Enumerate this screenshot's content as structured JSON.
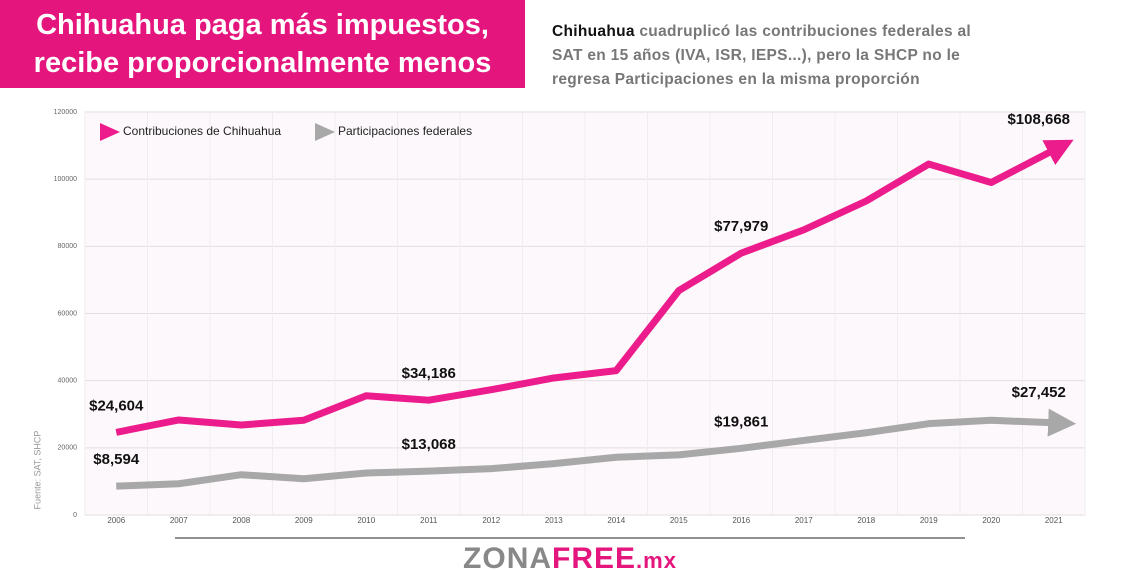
{
  "chart_data": {
    "type": "line",
    "title": "Chihuahua paga más impuestos, recibe proporcionalmente menos",
    "subtitle": {
      "lead": "Chihuahua",
      "text": "cuadruplicó las contribuciones federales al SAT en 15 años (IVA, ISR, IEPS...), pero la SHCP no le regresa Participaciones en la misma proporción"
    },
    "source": "Fuente: SAT, SHCP",
    "brand": [
      "ZONA",
      "FREE",
      ".mx"
    ],
    "categories": [
      "2006",
      "2007",
      "2008",
      "2009",
      "2010",
      "2011",
      "2012",
      "2013",
      "2014",
      "2015",
      "2016",
      "2017",
      "2018",
      "2019",
      "2020",
      "2021"
    ],
    "series": [
      {
        "name": "Contribuciones de Chihuahua",
        "color": "#ec1c8c",
        "values": [
          24604,
          28300,
          26800,
          28200,
          35500,
          34186,
          37300,
          40800,
          43000,
          66800,
          77979,
          84900,
          93500,
          104500,
          99000,
          108668
        ],
        "value_labels": [
          "$24,604",
          null,
          null,
          null,
          null,
          "$34,186",
          null,
          null,
          null,
          null,
          "$77,979",
          null,
          null,
          null,
          null,
          "$108,668"
        ]
      },
      {
        "name": "Participaciones federales",
        "color": "#a8a8a8",
        "values": [
          8594,
          9300,
          12000,
          10800,
          12500,
          13068,
          13800,
          15300,
          17200,
          17900,
          19861,
          22200,
          24500,
          27200,
          28200,
          27452
        ],
        "value_labels": [
          "$8,594",
          null,
          null,
          null,
          null,
          "$13,068",
          null,
          null,
          null,
          null,
          "$19,861",
          null,
          null,
          null,
          null,
          "$27,452"
        ]
      }
    ],
    "ylim": [
      0,
      120000
    ],
    "yticks": [
      0,
      20000,
      40000,
      60000,
      80000,
      100000,
      120000
    ],
    "grid": true,
    "legend": "upper left"
  }
}
